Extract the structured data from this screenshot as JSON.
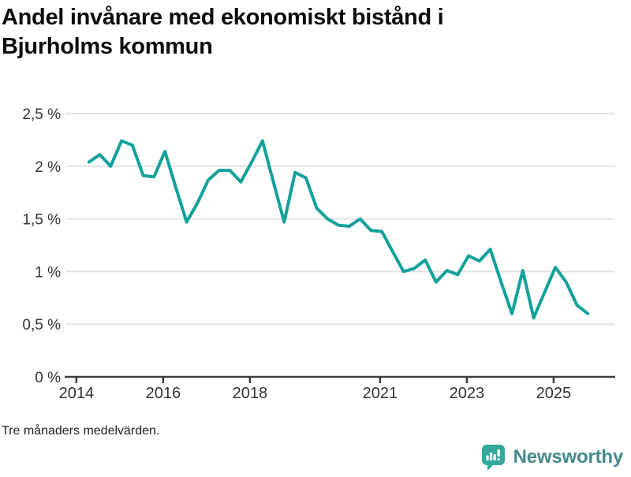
{
  "title": {
    "lines": [
      "Andel invånare med ekonomiskt bistånd i",
      "Bjurholms kommun"
    ]
  },
  "footnote": "Tre månaders medelvärden.",
  "branding": {
    "name": "Newsworthy",
    "badge_icon": "bar-chart-speech-bubble-icon",
    "badge_color": "#35a79c",
    "text_color": "#45898c"
  },
  "colors": {
    "line": "#12a19a",
    "grid": "#e2e2e2",
    "axis": "#3d3d3d",
    "tick_label": "#333333"
  },
  "chart_data": {
    "type": "line",
    "title": "Andel invånare med ekonomiskt bistånd i Bjurholms kommun",
    "subtitle": "Tre månaders medelvärden.",
    "unit": "%",
    "grid": "horizontal",
    "legend": "none",
    "ylim": [
      0,
      2.5
    ],
    "xlim": [
      2013.73,
      2026.42
    ],
    "y_ticks": [
      {
        "value": 0,
        "label": "0 %"
      },
      {
        "value": 0.5,
        "label": "0,5 %"
      },
      {
        "value": 1,
        "label": "1 %"
      },
      {
        "value": 1.5,
        "label": "1,5 %"
      },
      {
        "value": 2,
        "label": "2 %"
      },
      {
        "value": 2.5,
        "label": "2,5 %"
      }
    ],
    "x_ticks": [
      {
        "value": 2014,
        "label": "2014"
      },
      {
        "value": 2016,
        "label": "2016"
      },
      {
        "value": 2018,
        "label": "2018"
      },
      {
        "value": 2021,
        "label": "2021"
      },
      {
        "value": 2023,
        "label": "2023"
      },
      {
        "value": 2025,
        "label": "2025"
      }
    ],
    "series": [
      {
        "name": "Andel invånare med ekonomiskt bistånd",
        "points": [
          [
            2014.29,
            2.04
          ],
          [
            2014.54,
            2.11
          ],
          [
            2014.79,
            2.0
          ],
          [
            2015.04,
            2.24
          ],
          [
            2015.29,
            2.2
          ],
          [
            2015.54,
            1.91
          ],
          [
            2015.79,
            1.9
          ],
          [
            2016.04,
            2.14
          ],
          [
            2016.29,
            1.8
          ],
          [
            2016.54,
            1.47
          ],
          [
            2016.79,
            1.65
          ],
          [
            2017.04,
            1.87
          ],
          [
            2017.29,
            1.96
          ],
          [
            2017.54,
            1.96
          ],
          [
            2017.79,
            1.85
          ],
          [
            2018.04,
            2.04
          ],
          [
            2018.29,
            2.24
          ],
          [
            2018.54,
            1.85
          ],
          [
            2018.79,
            1.47
          ],
          [
            2019.04,
            1.94
          ],
          [
            2019.29,
            1.89
          ],
          [
            2019.54,
            1.6
          ],
          [
            2019.79,
            1.5
          ],
          [
            2020.04,
            1.44
          ],
          [
            2020.29,
            1.43
          ],
          [
            2020.54,
            1.5
          ],
          [
            2020.79,
            1.39
          ],
          [
            2021.04,
            1.38
          ],
          [
            2021.29,
            1.19
          ],
          [
            2021.54,
            1.0
          ],
          [
            2021.79,
            1.03
          ],
          [
            2022.04,
            1.11
          ],
          [
            2022.29,
            0.9
          ],
          [
            2022.54,
            1.01
          ],
          [
            2022.79,
            0.97
          ],
          [
            2023.04,
            1.15
          ],
          [
            2023.29,
            1.1
          ],
          [
            2023.54,
            1.21
          ],
          [
            2023.79,
            0.9
          ],
          [
            2024.04,
            0.6
          ],
          [
            2024.29,
            1.01
          ],
          [
            2024.54,
            0.56
          ],
          [
            2024.79,
            0.8
          ],
          [
            2025.04,
            1.04
          ],
          [
            2025.29,
            0.9
          ],
          [
            2025.54,
            0.68
          ],
          [
            2025.79,
            0.6
          ]
        ]
      }
    ]
  }
}
